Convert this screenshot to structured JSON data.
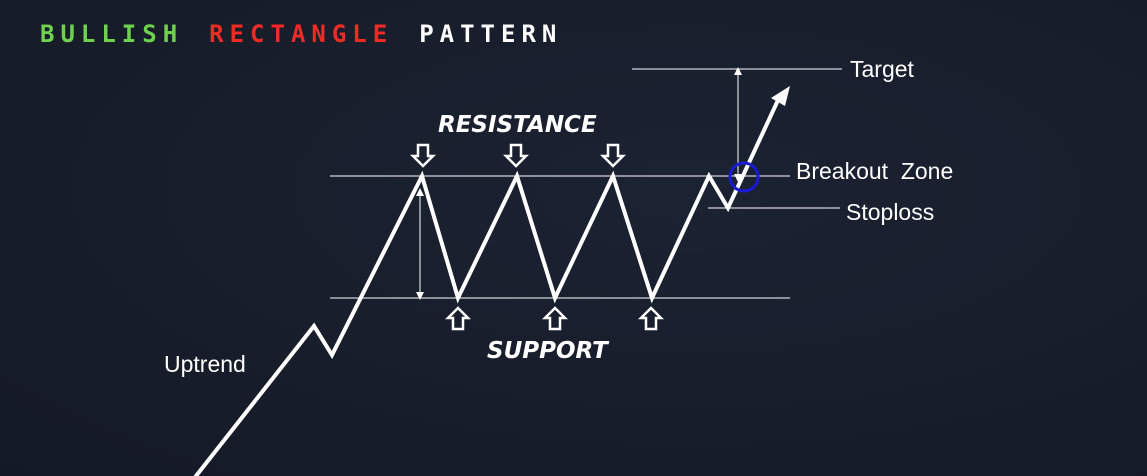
{
  "title": {
    "word1": "BULLISH",
    "word2": "RECTANGLE",
    "word3": "PATTERN",
    "color1": "#6fd24e",
    "color2": "#ee2b24",
    "color3": "#ffffff"
  },
  "labels": {
    "resistance": "RESISTANCE",
    "support": "SUPPORT",
    "target": "Target",
    "breakout": "Breakout  Zone",
    "stoploss": "Stoploss",
    "uptrend": "Uptrend"
  },
  "colors": {
    "line": "#ffffff",
    "breakout_circle": "#1a1ad6",
    "background": "#171d2b"
  }
}
